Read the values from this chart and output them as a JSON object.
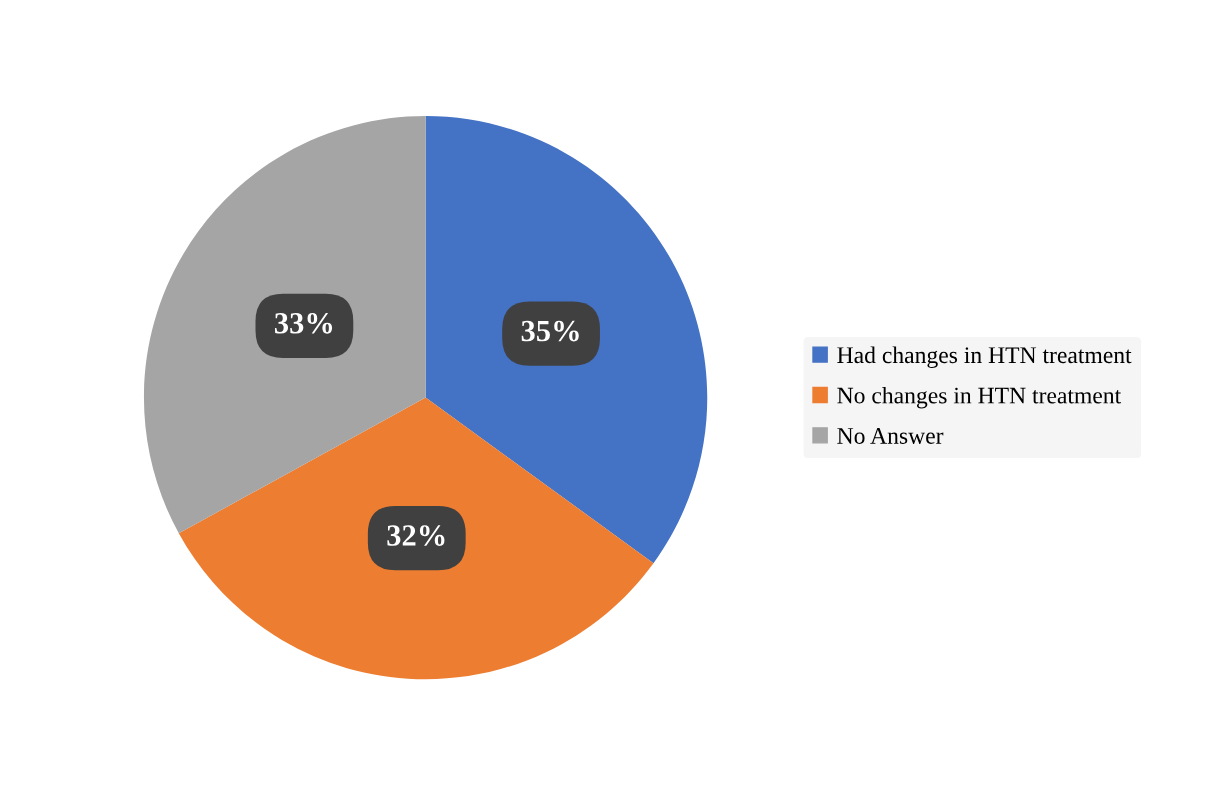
{
  "chart_data": {
    "type": "pie",
    "categories": [
      "Had changes in HTN treatment",
      "No changes in HTN treatment",
      "No Answer"
    ],
    "values": [
      35,
      32,
      33
    ],
    "colors": [
      "#4472c4",
      "#ed7d31",
      "#a5a5a5"
    ],
    "value_labels": [
      "35%",
      "32%",
      "33%"
    ],
    "legend": "right"
  }
}
